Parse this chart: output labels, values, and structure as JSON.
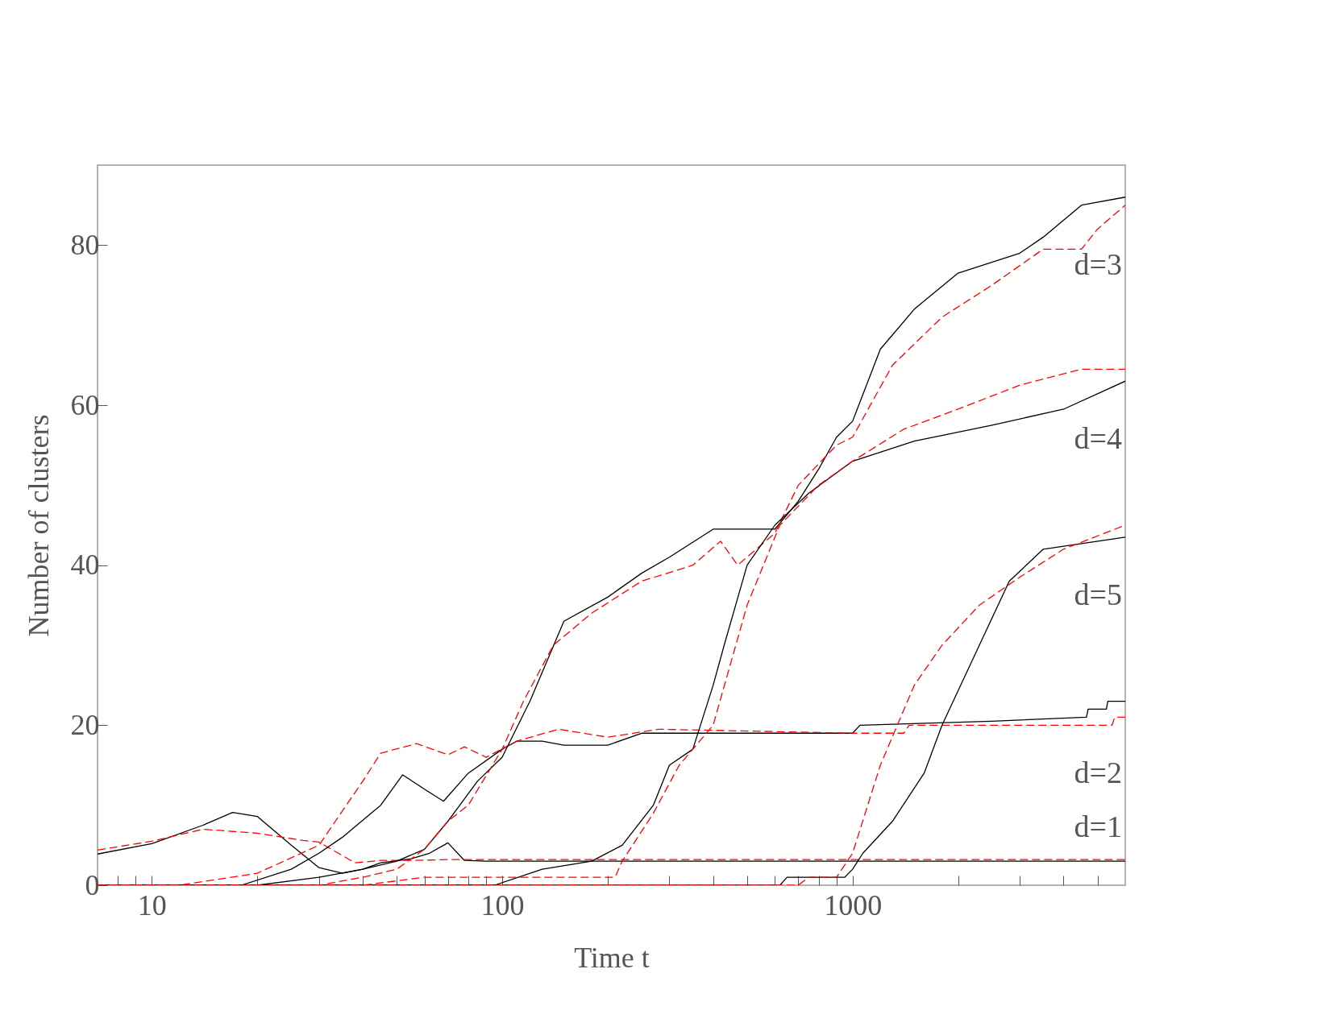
{
  "chart_data": {
    "type": "line",
    "xlabel": "Time t",
    "ylabel": "Number of clusters",
    "log": "x",
    "grid": false,
    "xlim": [
      7,
      6000
    ],
    "ylim": [
      0,
      90
    ],
    "xticks": [
      {
        "value": 8,
        "label": null
      },
      {
        "value": 9,
        "label": null
      },
      10,
      {
        "value": 20,
        "label": null
      },
      {
        "value": 30,
        "label": null
      },
      {
        "value": 40,
        "label": null
      },
      {
        "value": 50,
        "label": null
      },
      {
        "value": 60,
        "label": null
      },
      {
        "value": 70,
        "label": null
      },
      {
        "value": 80,
        "label": null
      },
      {
        "value": 90,
        "label": null
      },
      100,
      {
        "value": 200,
        "label": null
      },
      {
        "value": 300,
        "label": null
      },
      {
        "value": 400,
        "label": null
      },
      {
        "value": 500,
        "label": null
      },
      {
        "value": 600,
        "label": null
      },
      {
        "value": 700,
        "label": null
      },
      {
        "value": 800,
        "label": null
      },
      {
        "value": 900,
        "label": null
      },
      1000,
      {
        "value": 2000,
        "label": null
      },
      {
        "value": 3000,
        "label": null
      },
      {
        "value": 4000,
        "label": null
      },
      {
        "value": 5000,
        "label": null
      }
    ],
    "yticks": [
      0,
      20,
      40,
      60,
      80
    ],
    "series": [
      {
        "color": "#000000",
        "line_style": "solid",
        "x": [
          7,
          10,
          14,
          17,
          20,
          25,
          30,
          35,
          40,
          45,
          55,
          62,
          70,
          78,
          90,
          200,
          1000,
          6000
        ],
        "values": [
          3.9,
          5.2,
          7.5,
          9.1,
          8.6,
          5,
          2.2,
          1.5,
          2,
          2.8,
          3.3,
          4,
          5.3,
          3.1,
          3,
          3,
          3,
          3
        ]
      },
      {
        "color": "#ff0000",
        "line_style": "dashed",
        "x": [
          7,
          10,
          14,
          20,
          27,
          30,
          38,
          45,
          55,
          70,
          100,
          1000,
          6000
        ],
        "values": [
          4.4,
          5.5,
          7,
          6.5,
          5.6,
          5.4,
          2.8,
          3.1,
          3.1,
          3.2,
          3.2,
          3.2,
          3.2
        ]
      },
      {
        "color": "#000000",
        "line_style": "solid",
        "x": [
          7,
          18,
          25,
          30,
          35,
          45,
          52,
          60,
          68,
          80,
          100,
          110,
          130,
          150,
          200,
          250,
          500,
          1000,
          1050,
          2500,
          4650,
          4700,
          5300,
          5350,
          6000
        ],
        "values": [
          0,
          0,
          2,
          4,
          6,
          10,
          13.8,
          12,
          10.5,
          14,
          17,
          18,
          18,
          17.5,
          17.5,
          19,
          19,
          19,
          20,
          20.5,
          21,
          22,
          22,
          23,
          23
        ]
      },
      {
        "color": "#ff0000",
        "line_style": "dashed",
        "x": [
          7,
          12,
          20,
          30,
          40,
          45,
          57,
          70,
          78,
          90,
          110,
          145,
          200,
          280,
          1000,
          1400,
          1450,
          5500,
          5600,
          6000
        ],
        "values": [
          0,
          0,
          1.5,
          5,
          13,
          16.5,
          17.7,
          16.3,
          17.3,
          16,
          18,
          19.5,
          18.5,
          19.5,
          19,
          19,
          20,
          20,
          21,
          21
        ]
      },
      {
        "color": "#000000",
        "line_style": "solid",
        "x": [
          7,
          20,
          30,
          40,
          50,
          60,
          70,
          85,
          100,
          120,
          150,
          200,
          250,
          300,
          400,
          600,
          700,
          800,
          900,
          1000,
          1200,
          1500,
          2000,
          3000,
          3500,
          4500,
          6000
        ],
        "values": [
          0,
          0,
          1,
          2,
          3,
          4.5,
          8,
          13,
          16,
          23,
          33,
          36,
          39,
          41,
          44.5,
          44.5,
          48,
          52,
          56,
          58,
          67,
          72,
          76.5,
          79,
          81,
          85,
          86
        ]
      },
      {
        "color": "#ff0000",
        "line_style": "dashed",
        "x": [
          7,
          30,
          40,
          50,
          60,
          70,
          80,
          100,
          115,
          140,
          180,
          250,
          350,
          420,
          470,
          600,
          700,
          900,
          1000,
          1300,
          1800,
          2500,
          3500,
          4500,
          5000,
          6000
        ],
        "values": [
          0,
          0,
          1,
          2,
          4.5,
          8,
          10,
          17,
          23,
          30,
          34,
          38,
          40,
          43,
          40,
          44,
          50,
          55,
          56,
          65,
          71,
          75,
          79.5,
          79.5,
          82,
          85
        ]
      },
      {
        "color": "#000000",
        "line_style": "solid",
        "x": [
          7,
          95,
          130,
          180,
          220,
          270,
          300,
          350,
          400,
          430,
          500,
          600,
          750,
          1000,
          1500,
          2500,
          4000,
          6000
        ],
        "values": [
          0,
          0,
          2,
          3,
          5,
          10,
          15,
          17,
          25,
          30,
          40,
          45,
          49,
          53,
          55.5,
          57.5,
          59.5,
          63
        ]
      },
      {
        "color": "#ff0000",
        "line_style": "dashed",
        "x": [
          7,
          40,
          60,
          210,
          220,
          270,
          320,
          400,
          500,
          620,
          800,
          1000,
          1400,
          2000,
          3000,
          4500,
          6000
        ],
        "values": [
          0,
          0,
          1,
          1,
          3,
          9,
          15,
          20,
          35,
          45,
          50,
          53,
          57,
          59.5,
          62.5,
          64.5,
          64.5
        ]
      },
      {
        "color": "#000000",
        "line_style": "solid",
        "x": [
          7,
          620,
          650,
          950,
          1000,
          1070,
          1300,
          1600,
          1800,
          2300,
          2800,
          3500,
          6000
        ],
        "values": [
          0,
          0,
          1,
          1,
          2,
          4,
          8,
          14,
          20,
          30,
          38,
          42,
          43.5
        ]
      },
      {
        "color": "#ff0000",
        "line_style": "dashed",
        "x": [
          7,
          700,
          750,
          900,
          1000,
          1200,
          1500,
          1800,
          2300,
          3000,
          4000,
          6000
        ],
        "values": [
          0,
          0,
          1,
          1,
          4,
          15,
          25,
          30,
          35,
          38.5,
          42,
          45
        ]
      }
    ],
    "annotations": [
      "d=1",
      "d=2",
      "d=3",
      "d=4",
      "d=5"
    ]
  }
}
